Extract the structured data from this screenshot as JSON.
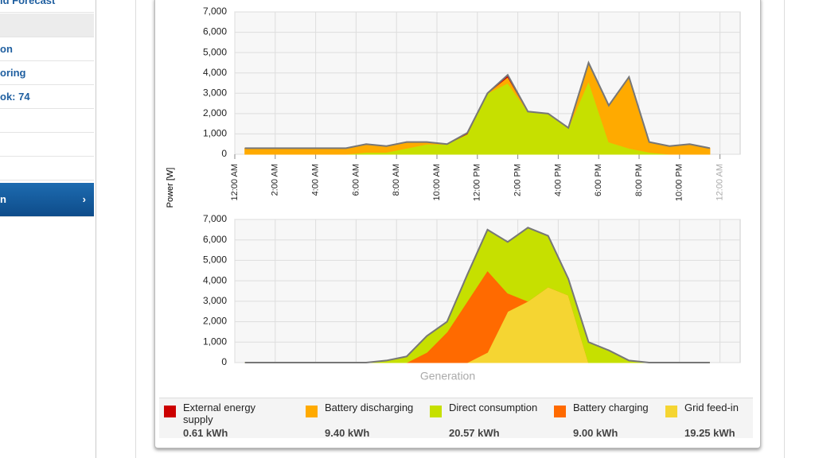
{
  "sidebar": {
    "items": [
      "ld Forecast",
      "on",
      "oring",
      "ok: 74",
      "n"
    ]
  },
  "legend": {
    "items": [
      {
        "label": "External energy supply",
        "color": "#cc0000",
        "energy": "0.61 kWh"
      },
      {
        "label": "Battery discharging",
        "color": "#ffaa00",
        "energy": "9.40 kWh"
      },
      {
        "label": "Direct consumption",
        "color": "#c6e000",
        "energy": "20.57 kWh"
      },
      {
        "label": "Battery charging",
        "color": "#ff6a00",
        "energy": "9.00 kWh"
      },
      {
        "label": "Grid feed-in",
        "color": "#f5d532",
        "energy": "19.25 kWh"
      }
    ]
  },
  "chart_data": [
    {
      "type": "area",
      "stacked": true,
      "ylabel": "Power [W]",
      "x": [
        0.5,
        1.5,
        2.5,
        3.5,
        4.5,
        5.5,
        6.5,
        7.5,
        8.5,
        9.5,
        10.5,
        11.5,
        12.5,
        13.5,
        14.5,
        15.5,
        16.5,
        17.5,
        18.5,
        19.5,
        20.5,
        21.5,
        22.5,
        23.5
      ],
      "series": [
        {
          "name": "Direct consumption",
          "color": "#c6e000",
          "values": [
            0,
            0,
            0,
            0,
            0,
            0,
            100,
            100,
            300,
            500,
            500,
            1000,
            3000,
            3500,
            2100,
            2000,
            1300,
            3600,
            600,
            300,
            100,
            0,
            0,
            0
          ]
        },
        {
          "name": "Battery discharging",
          "color": "#ffaa00",
          "values": [
            300,
            300,
            300,
            300,
            300,
            300,
            400,
            300,
            300,
            100,
            0,
            0,
            0,
            300,
            0,
            0,
            0,
            900,
            1800,
            3500,
            500,
            400,
            500,
            300
          ]
        },
        {
          "name": "External energy supply",
          "color": "#cc0000",
          "values": [
            0,
            0,
            0,
            0,
            0,
            0,
            0,
            0,
            0,
            0,
            0,
            50,
            0,
            100,
            0,
            0,
            0,
            0,
            0,
            0,
            0,
            0,
            0,
            0
          ]
        }
      ],
      "xlim": [
        0,
        25
      ],
      "ylim": [
        0,
        7000
      ],
      "xticks": [
        {
          "value": 0,
          "label": "12:00 AM"
        },
        {
          "value": 2,
          "label": "2:00 AM"
        },
        {
          "value": 4,
          "label": "4:00 AM"
        },
        {
          "value": 6,
          "label": "6:00 AM"
        },
        {
          "value": 8,
          "label": "8:00 AM"
        },
        {
          "value": 10,
          "label": "10:00 AM"
        },
        {
          "value": 12,
          "label": "12:00 PM"
        },
        {
          "value": 14,
          "label": "2:00 PM"
        },
        {
          "value": 16,
          "label": "4:00 PM"
        },
        {
          "value": 18,
          "label": "6:00 PM"
        },
        {
          "value": 20,
          "label": "8:00 PM"
        },
        {
          "value": 22,
          "label": "10:00 PM"
        },
        {
          "value": 24,
          "label": "12:00 AM"
        }
      ],
      "yticks": [
        0,
        {
          "value": 1000,
          "label": "1,000"
        },
        {
          "value": 2000,
          "label": "2,000"
        },
        {
          "value": 3000,
          "label": "3,000"
        },
        {
          "value": 4000,
          "label": "4,000"
        },
        {
          "value": 5000,
          "label": "5,000"
        },
        {
          "value": 6000,
          "label": "6,000"
        },
        {
          "value": 7000,
          "label": "7,000"
        }
      ],
      "grid": true
    },
    {
      "type": "area",
      "stacked": true,
      "xlabel": "Generation",
      "x": [
        0.5,
        1.5,
        2.5,
        3.5,
        4.5,
        5.5,
        6.5,
        7.5,
        8.5,
        9.5,
        10.5,
        11.5,
        12.5,
        13.5,
        14.5,
        15.5,
        16.5,
        17.5,
        18.5,
        19.5,
        20.5,
        21.5,
        22.5,
        23.5
      ],
      "series": [
        {
          "name": "Grid feed-in",
          "color": "#f5d532",
          "values": [
            0,
            0,
            0,
            0,
            0,
            0,
            0,
            0,
            0,
            0,
            0,
            0,
            500,
            2500,
            3000,
            3700,
            3300,
            0,
            0,
            0,
            0,
            0,
            0,
            0
          ]
        },
        {
          "name": "Battery charging",
          "color": "#ff6a00",
          "values": [
            0,
            0,
            0,
            0,
            0,
            0,
            0,
            0,
            0,
            500,
            1500,
            3000,
            4000,
            900,
            0,
            0,
            0,
            0,
            0,
            0,
            0,
            0,
            0,
            0
          ]
        },
        {
          "name": "Direct consumption",
          "color": "#c6e000",
          "values": [
            0,
            0,
            0,
            0,
            0,
            0,
            0,
            100,
            300,
            800,
            500,
            1300,
            2000,
            2500,
            3600,
            2500,
            800,
            1000,
            600,
            100,
            0,
            0,
            0,
            0
          ]
        }
      ],
      "xlim": [
        0,
        25
      ],
      "ylim": [
        0,
        7000
      ],
      "yticks": [
        0,
        {
          "value": 1000,
          "label": "1,000"
        },
        {
          "value": 2000,
          "label": "2,000"
        },
        {
          "value": 3000,
          "label": "3,000"
        },
        {
          "value": 4000,
          "label": "4,000"
        },
        {
          "value": 5000,
          "label": "5,000"
        },
        {
          "value": 6000,
          "label": "6,000"
        },
        {
          "value": 7000,
          "label": "7,000"
        }
      ],
      "grid": true
    }
  ]
}
